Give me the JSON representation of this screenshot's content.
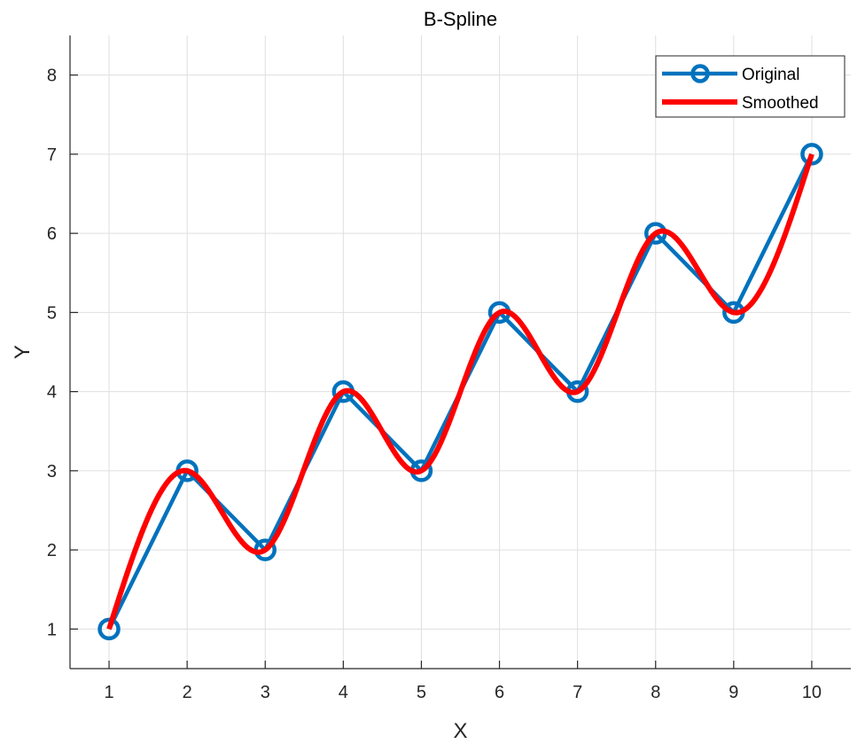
{
  "chart_data": {
    "type": "line",
    "title": "B-Spline",
    "xlabel": "X",
    "ylabel": "Y",
    "xlim": [
      0.5,
      10.5
    ],
    "ylim": [
      0.5,
      8.5
    ],
    "xticks": [
      1,
      2,
      3,
      4,
      5,
      6,
      7,
      8,
      9,
      10
    ],
    "yticks": [
      1,
      2,
      3,
      4,
      5,
      6,
      7,
      8
    ],
    "grid": true,
    "legend_position": "top-right",
    "series": [
      {
        "name": "Original",
        "x": [
          1,
          2,
          3,
          4,
          5,
          6,
          7,
          8,
          9,
          10
        ],
        "y": [
          1,
          3,
          2,
          4,
          3,
          5,
          4,
          6,
          5,
          7
        ],
        "color": "#0072BD",
        "marker": "circle"
      },
      {
        "name": "Smoothed",
        "x": [
          1,
          2,
          3,
          4,
          5,
          6,
          7,
          8,
          9,
          10
        ],
        "y": [
          1,
          3,
          2,
          4,
          3,
          5,
          4,
          6,
          5,
          7
        ],
        "color": "#FF0000",
        "smooth": true
      }
    ]
  }
}
